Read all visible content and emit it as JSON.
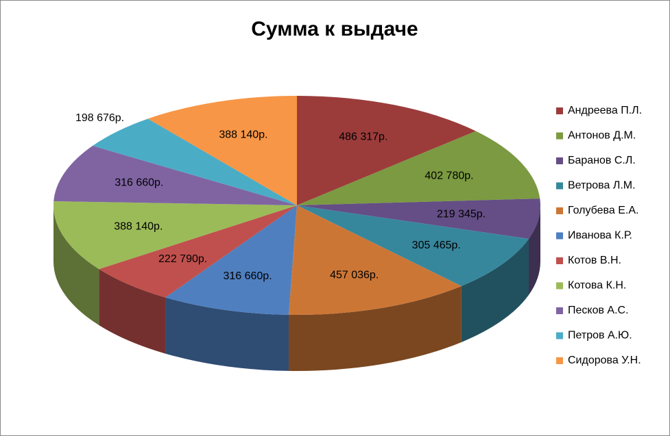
{
  "chart_data": {
    "type": "pie3d",
    "title": "Сумма к выдаче",
    "categories": [
      "Андреева П.Л.",
      "Антонов Д.М.",
      "Баранов С.Л.",
      "Ветрова Л.М.",
      "Голубева Е.А.",
      "Иванова К.Р.",
      "Котов В.Н.",
      "Котова К.Н.",
      "Песков А.С.",
      "Петров А.Ю.",
      "Сидорова У.Н."
    ],
    "values": [
      486317,
      402780,
      219345,
      305465,
      457036,
      316660,
      222790,
      388140,
      316660,
      198676,
      388140
    ],
    "value_labels": [
      "486 317р.",
      "402 780р.",
      "219 345р.",
      "305 465р.",
      "457 036р.",
      "316 660р.",
      "222 790р.",
      "388 140р.",
      "316 660р.",
      "198 676р.",
      "388 140р."
    ],
    "colors": [
      "#9b3c3b",
      "#7b9a41",
      "#644e85",
      "#37879c",
      "#cc7636",
      "#4f7fbf",
      "#c0504d",
      "#9bbb59",
      "#8064a2",
      "#4bacc6",
      "#f79646"
    ],
    "legend": "right"
  }
}
